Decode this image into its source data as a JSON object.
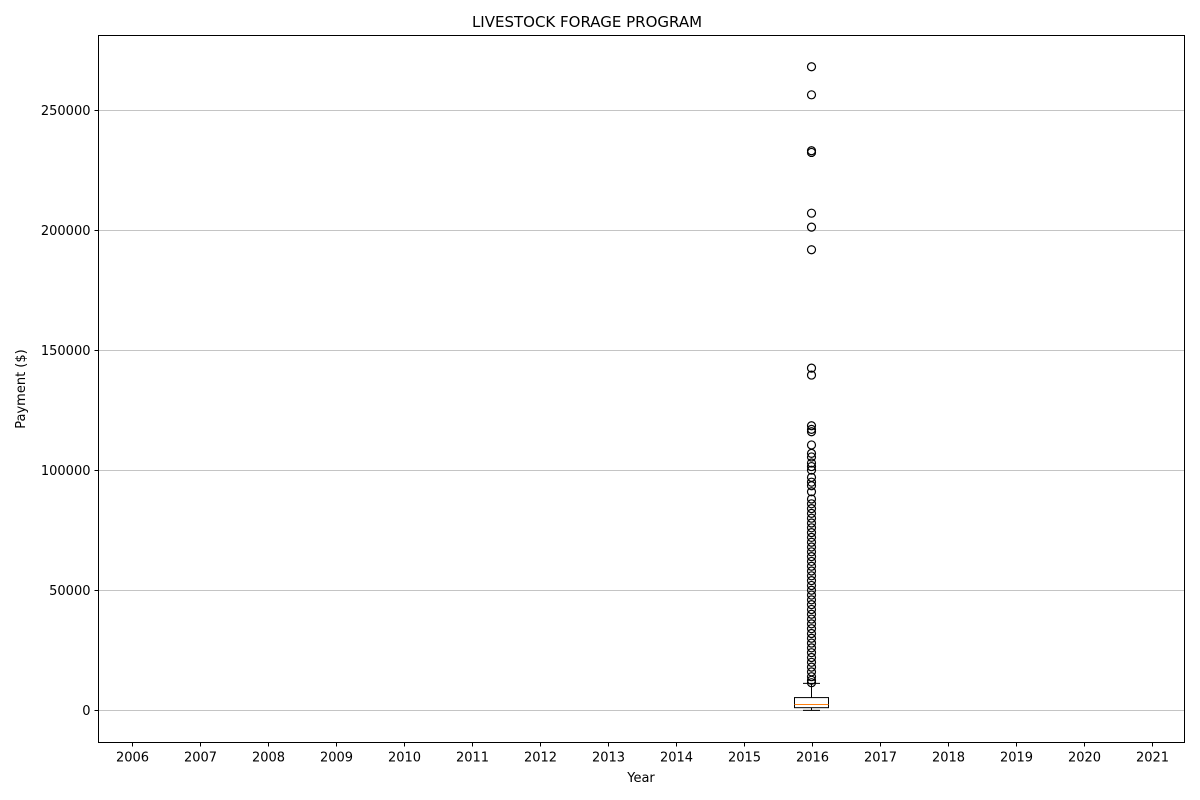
{
  "chart_data": {
    "type": "box",
    "title": "LIVESTOCK FORAGE PROGRAM",
    "xlabel": "Year",
    "ylabel": "Payment ($)",
    "categories": [
      "2006",
      "2007",
      "2008",
      "2009",
      "2010",
      "2011",
      "2012",
      "2013",
      "2014",
      "2015",
      "2016",
      "2017",
      "2018",
      "2019",
      "2020",
      "2021"
    ],
    "ylim": [
      -13400,
      281000
    ],
    "yticks": [
      0,
      50000,
      100000,
      150000,
      200000,
      250000
    ],
    "grid": "y",
    "boxes": [
      {
        "category": "2016",
        "whisker_low": 0,
        "q1": 1100,
        "median": 2400,
        "q3": 5300,
        "whisker_high": 11200,
        "fliers": [
          268000,
          256300,
          233000,
          232300,
          207000,
          201200,
          191800,
          142500,
          139600,
          118500,
          117000,
          116000,
          110500,
          107000,
          105500,
          103000,
          101500,
          100000,
          97000,
          95000,
          93500,
          91000,
          88000,
          86000,
          84000,
          82000,
          80000,
          78000,
          76000,
          74000,
          72000,
          70000,
          68000,
          66000,
          64000,
          62000,
          60000,
          58000,
          56000,
          54000,
          52000,
          50000,
          48000,
          46000,
          44000,
          42000,
          40000,
          38000,
          36000,
          34000,
          32000,
          30000,
          28000,
          26000,
          24000,
          22000,
          20000,
          18000,
          16000,
          14000,
          12500,
          11500
        ]
      }
    ],
    "colors": {
      "box": "#000000",
      "median": "#ff7f0e",
      "grid": "#b0b0b0",
      "flier": "#000000"
    }
  }
}
